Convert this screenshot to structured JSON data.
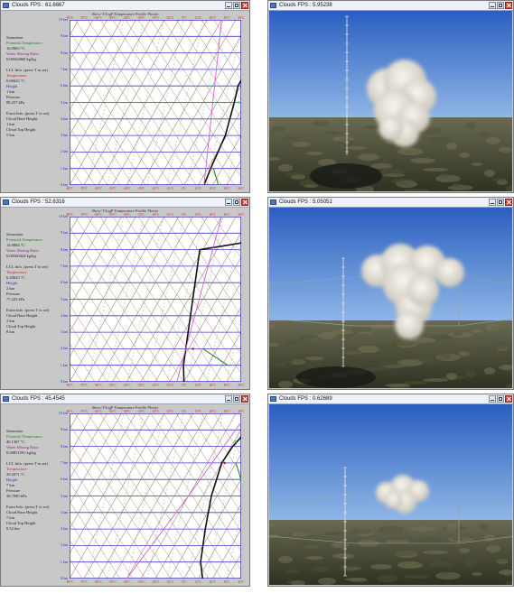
{
  "chart_title": "Skew-T/logP Temperature Profile Plotter",
  "info_static": {
    "saturation": "Saturation",
    "potential_temperature": "Potential Temperature",
    "water_mixing_ratio": "Water Mixing Ratio",
    "lcl_info": "LCL Info. (press T to set)",
    "temperature": "Temperature",
    "height": "Height",
    "pressure": "Pressure",
    "extra_info": "Extra Info. (press T to set)",
    "cloud_base_height": "Cloud Base Height",
    "cloud_top_height": "Cloud Top Height"
  },
  "y_axis_labels": [
    "10 km",
    "9 km",
    "8 km",
    "7 km",
    "6 km",
    "5 km",
    "4 km",
    "3 km",
    "2 km",
    "1 km",
    "0 km"
  ],
  "x_axis_labels": [
    "-80°C",
    "-70°C",
    "-60°C",
    "-50°C",
    "-40°C",
    "-30°C",
    "-20°C",
    "-10°C",
    "0°C",
    "10°C",
    "20°C",
    "30°C",
    "40°C"
  ],
  "rows": [
    {
      "left": {
        "title": "Clouds FPS : 61.6667",
        "potential_temperature": "16.0963 °C",
        "water_mixing_ratio": "0.00564860 kg/kg",
        "lcl_temperature": "6.06623 °C",
        "lcl_height": "1 km",
        "lcl_pressure": "88.257 kPa",
        "cloud_base_height": "1 km",
        "cloud_top_height": "5 km"
      },
      "right": {
        "title": "Clouds FPS : 5.95238"
      },
      "chart_data": {
        "type": "line",
        "series": [
          {
            "x": [
              14,
              12,
              9,
              2,
              -2,
              -2,
              -2,
              -2
            ],
            "y": [
              0,
              1,
              3,
              5,
              6,
              8,
              9,
              10
            ]
          },
          {
            "x": [
              14,
              -40
            ],
            "y": [
              0,
              10
            ]
          },
          {
            "x": [
              24,
              14
            ],
            "y": [
              0,
              1
            ]
          }
        ],
        "markers": [
          {
            "x": 12,
            "y": 1
          },
          {
            "x": 5,
            "y": 5
          }
        ]
      }
    },
    {
      "left": {
        "title": "Clouds FPS : 52.6316",
        "potential_temperature": "14.0884 °C",
        "water_mixing_ratio": "0.00560424 kg/kg",
        "lcl_temperature": "6.20625 °C",
        "lcl_height": "2 km",
        "lcl_pressure": "77.225 kPa",
        "cloud_base_height": "2 km",
        "cloud_top_height": "8 km"
      },
      "right": {
        "title": "Clouds FPS : 5.05051"
      },
      "chart_data": {
        "type": "line",
        "series": [
          {
            "x": [
              0,
              -7,
              -12,
              -22,
              -27,
              -42,
              -16,
              -16,
              -16
            ],
            "y": [
              0,
              1,
              2,
              4,
              5,
              8,
              8.4,
              9,
              10
            ]
          },
          {
            "x": [
              -5,
              -40
            ],
            "y": [
              0,
              10
            ]
          },
          {
            "x": [
              24,
              0
            ],
            "y": [
              1,
              2
            ]
          }
        ],
        "markers": [
          {
            "x": -7,
            "y": 2
          },
          {
            "x": -14,
            "y": 8
          }
        ]
      }
    },
    {
      "left": {
        "title": "Clouds FPS : 45.4545",
        "potential_temperature": "40.1307 °C",
        "water_mixing_ratio": "0.00851091 kg/kg",
        "lcl_temperature": "29.4371 °C",
        "lcl_height": "7 km",
        "lcl_pressure": "38.7080 kPa",
        "cloud_base_height": "7 km",
        "cloud_top_height": "8.52 km"
      },
      "right": {
        "title": "Clouds FPS : 0.62689"
      },
      "chart_data": {
        "type": "line",
        "series": [
          {
            "x": [
              13,
              5,
              -5,
              -14,
              -20,
              -19,
              -17,
              -17,
              -17
            ],
            "y": [
              0,
              1,
              3,
              5,
              7,
              8,
              8.5,
              9,
              10
            ]
          },
          {
            "x": [
              -40,
              -30,
              -22
            ],
            "y": [
              0,
              5,
              10
            ]
          },
          {
            "x": [
              40,
              -10
            ],
            "y": [
              2,
              7
            ]
          }
        ],
        "markers": [
          {
            "x": -18,
            "y": 7
          },
          {
            "x": -19,
            "y": 8.3
          }
        ]
      }
    }
  ]
}
